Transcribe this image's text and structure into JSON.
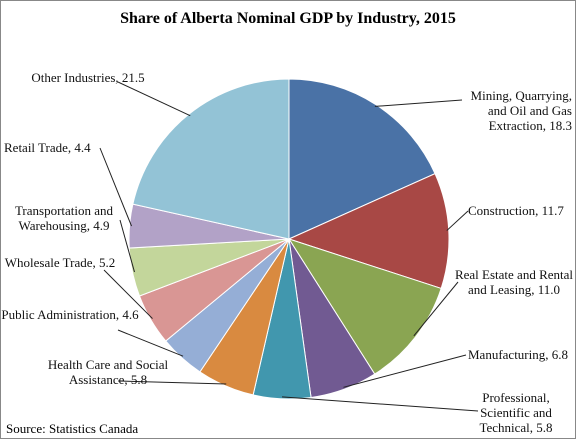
{
  "chart_data": {
    "type": "pie",
    "title": "Share of Alberta Nominal GDP by Industry, 2015",
    "source": "Source: Statistics Canada",
    "values": [
      18.3,
      11.7,
      11.0,
      6.8,
      5.8,
      5.8,
      4.6,
      5.2,
      4.9,
      4.4,
      21.5
    ],
    "value_labels": [
      "Mining, Quarrying, and Oil and Gas Extraction, 18.3",
      "Construction, 11.7",
      "Real Estate and Rental and Leasing, 11.0",
      "Manufacturing, 6.8",
      "Professional, Scientific and Technical, 5.8",
      "Health Care and Social Assistance, 5.8",
      "Public Administration, 4.6",
      "Wholesale Trade, 5.2",
      "Transportation and Warehousing, 4.9",
      "Retail Trade, 4.4",
      "Other Industries, 21.5"
    ],
    "colors": [
      "#4a72a6",
      "#a84845",
      "#8aa552",
      "#715a92",
      "#4197ae",
      "#d98a40",
      "#95aed6",
      "#d99694",
      "#c3d69b",
      "#b2a2c7",
      "#93c3d6"
    ]
  }
}
